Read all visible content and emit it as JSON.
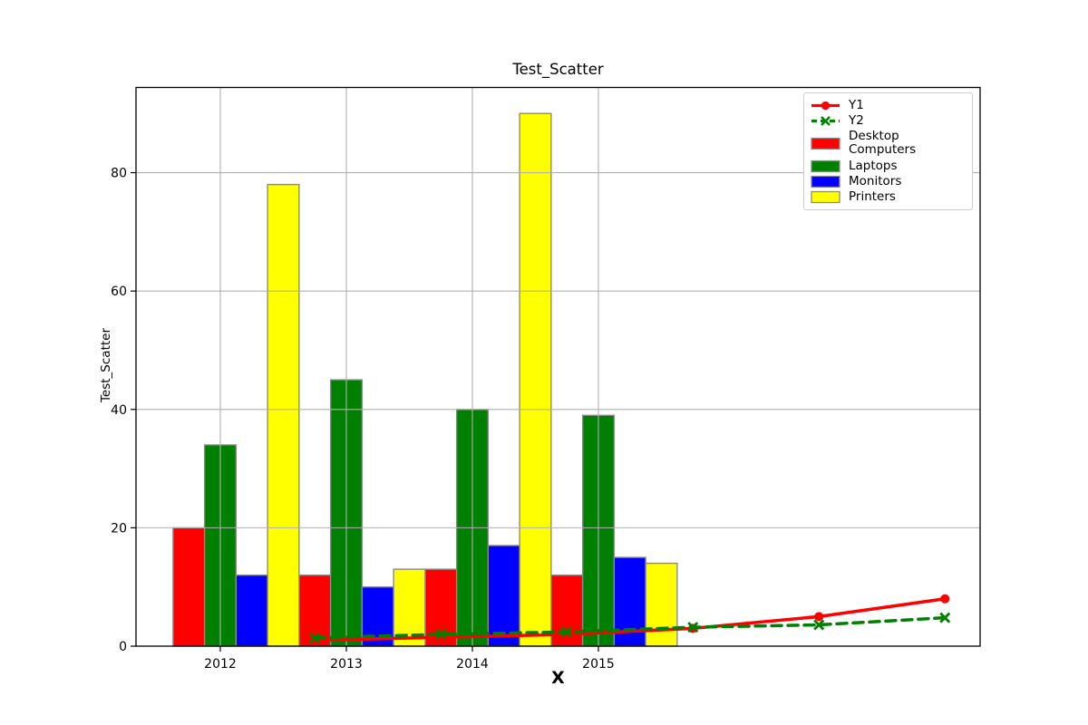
{
  "chart_data": {
    "type": "bar",
    "title": "Test_Scatter",
    "xlabel": "X",
    "ylabel": "Test_Scatter",
    "categories": [
      "2012",
      "2013",
      "2014",
      "2015"
    ],
    "series": [
      {
        "name": "Desktop Computers",
        "color": "#ff0000",
        "values": [
          20,
          12,
          13,
          12
        ]
      },
      {
        "name": "Laptops",
        "color": "#008000",
        "values": [
          34,
          45,
          40,
          39
        ]
      },
      {
        "name": "Monitors",
        "color": "#0000ff",
        "values": [
          12,
          10,
          17,
          15
        ]
      },
      {
        "name": "Printers",
        "color": "#ffff00",
        "values": [
          78,
          13,
          90,
          14
        ]
      }
    ],
    "line_series": [
      {
        "name": "Y1",
        "color": "#ff0000",
        "style": "solid",
        "marker": "circle",
        "x_units": [
          0.75,
          1.75,
          2.75,
          3.75,
          4.75,
          5.75
        ],
        "values": [
          1,
          1.5,
          2,
          3,
          5,
          8
        ]
      },
      {
        "name": "Y2",
        "color": "#008000",
        "style": "dashed",
        "marker": "x",
        "x_units": [
          0.75,
          1.75,
          2.75,
          3.75,
          4.75,
          5.75
        ],
        "values": [
          1.4,
          2,
          2.4,
          3.2,
          3.6,
          4.8
        ]
      }
    ],
    "yticks": [
      0,
      20,
      40,
      60,
      80
    ],
    "ylim": [
      0,
      94.4
    ],
    "xlim_units": [
      -0.67,
      6.03
    ],
    "bar_width_units": 0.25,
    "bar_offsets_units": [
      -0.25,
      0,
      0.25,
      0.5
    ],
    "grid": true,
    "legend_position": "upper right",
    "legend_order": [
      "Y1",
      "Y2",
      "Desktop Computers",
      "Laptops",
      "Monitors",
      "Printers"
    ],
    "colors": {
      "bar_edge": "#8a8a8a",
      "grid": "#b0b0b0",
      "axes": "#000000",
      "legend_border": "#cccccc",
      "background": "#ffffff"
    }
  }
}
